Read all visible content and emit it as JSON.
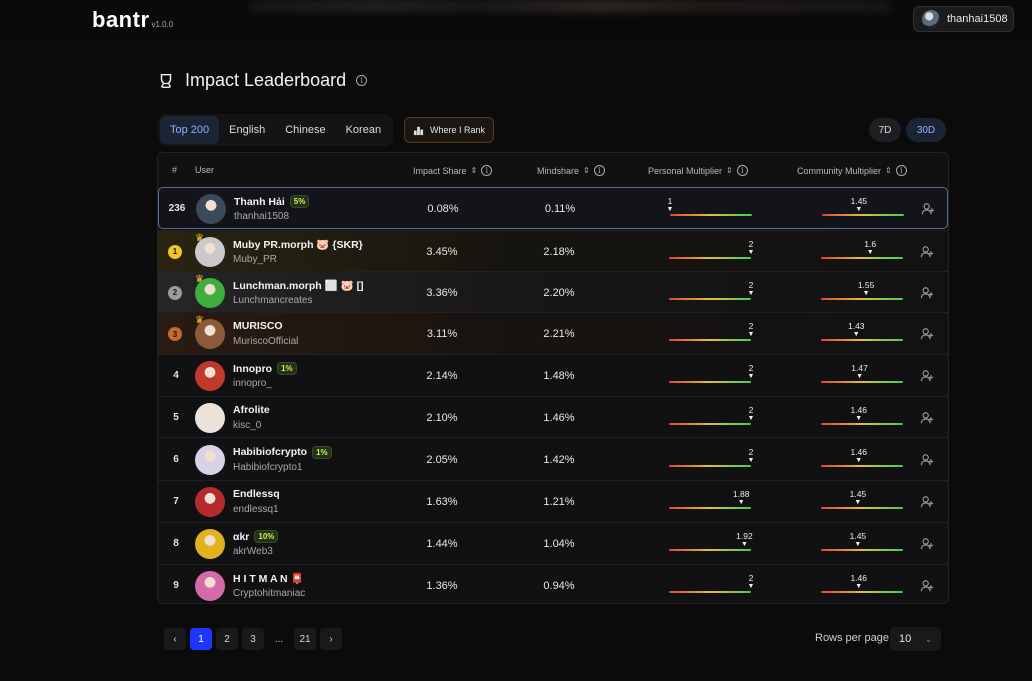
{
  "app": {
    "logo": "bantr",
    "version": "v1.0.0"
  },
  "account": {
    "username": "thanhai1508"
  },
  "page": {
    "title": "Impact Leaderboard"
  },
  "tabs": [
    {
      "label": "Top 200",
      "active": true
    },
    {
      "label": "English",
      "active": false
    },
    {
      "label": "Chinese",
      "active": false
    },
    {
      "label": "Korean",
      "active": false
    }
  ],
  "where_rank_label": "Where I Rank",
  "periods": [
    {
      "label": "7D",
      "active": false
    },
    {
      "label": "30D",
      "active": true
    }
  ],
  "columns": {
    "rank": "#",
    "user": "User",
    "impact": "Impact Share",
    "mindshare": "Mindshare",
    "personal": "Personal Multiplier",
    "community": "Community Multiplier"
  },
  "multiplier_range": {
    "personal": [
      1,
      2
    ],
    "community": [
      1,
      2
    ]
  },
  "rows": [
    {
      "rank": "236",
      "medal": "",
      "name": "Thanh Hải",
      "badge": "5%",
      "handle": "thanhai1508",
      "impact": "0.08%",
      "mindshare": "0.11%",
      "personal": "1",
      "community": "1.45",
      "me": true,
      "tier": "",
      "avatar": "#3b4a5a"
    },
    {
      "rank": "1",
      "medal": "1",
      "name": "Muby PR.morph 🐷 {SKR}",
      "badge": "",
      "handle": "Muby_PR",
      "impact": "3.45%",
      "mindshare": "2.18%",
      "personal": "2",
      "community": "1.6",
      "me": false,
      "tier": "gold",
      "avatar": "#c9c9c9"
    },
    {
      "rank": "2",
      "medal": "2",
      "name": "Lunchman.morph ⬜ 🐷 []",
      "badge": "",
      "handle": "Lunchmancreates",
      "impact": "3.36%",
      "mindshare": "2.20%",
      "personal": "2",
      "community": "1.55",
      "me": false,
      "tier": "silver",
      "avatar": "#3fae3f"
    },
    {
      "rank": "3",
      "medal": "3",
      "name": "MURISCO",
      "badge": "",
      "handle": "MuriscoOfficial",
      "impact": "3.11%",
      "mindshare": "2.21%",
      "personal": "2",
      "community": "1.43",
      "me": false,
      "tier": "bronze",
      "avatar": "#8a5a3a"
    },
    {
      "rank": "4",
      "medal": "",
      "name": "Innopro",
      "badge": "1%",
      "handle": "innopro_",
      "impact": "2.14%",
      "mindshare": "1.48%",
      "personal": "2",
      "community": "1.47",
      "me": false,
      "tier": "",
      "avatar": "#c0392b"
    },
    {
      "rank": "5",
      "medal": "",
      "name": "Afrolite",
      "badge": "",
      "handle": "kisc_0",
      "impact": "2.10%",
      "mindshare": "1.46%",
      "personal": "2",
      "community": "1.46",
      "me": false,
      "tier": "",
      "avatar": "#e8e2da"
    },
    {
      "rank": "6",
      "medal": "",
      "name": "Habibiofcrypto",
      "badge": "1%",
      "handle": "Habibiofcrypto1",
      "impact": "2.05%",
      "mindshare": "1.42%",
      "personal": "2",
      "community": "1.46",
      "me": false,
      "tier": "",
      "avatar": "#d9d2e6"
    },
    {
      "rank": "7",
      "medal": "",
      "name": "Endlessq",
      "badge": "",
      "handle": "endlessq1",
      "impact": "1.63%",
      "mindshare": "1.21%",
      "personal": "1.88",
      "community": "1.45",
      "me": false,
      "tier": "",
      "avatar": "#b52a2a"
    },
    {
      "rank": "8",
      "medal": "",
      "name": "αkr",
      "badge": "10%",
      "handle": "akrWeb3",
      "impact": "1.44%",
      "mindshare": "1.04%",
      "personal": "1.92",
      "community": "1.45",
      "me": false,
      "tier": "",
      "avatar": "#e3b020"
    },
    {
      "rank": "9",
      "medal": "",
      "name": "H I T M A N 📮",
      "badge": "",
      "handle": "Cryptohitmaniac",
      "impact": "1.36%",
      "mindshare": "0.94%",
      "personal": "2",
      "community": "1.46",
      "me": false,
      "tier": "",
      "avatar": "#d46aa8"
    }
  ],
  "pagination": {
    "pages": [
      "1",
      "2",
      "3",
      "...",
      "21"
    ],
    "active": "1",
    "prev": "‹",
    "next": "›"
  },
  "rows_per_page": {
    "label": "Rows per page:",
    "value": "10"
  }
}
